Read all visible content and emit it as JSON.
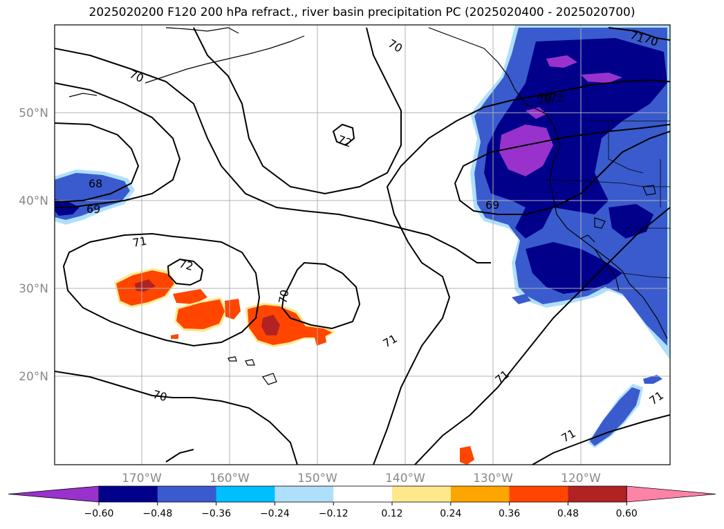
{
  "title": "2025020200 F120 200 hPa refract., river basin precipitation PC (2025020400 - 2025020700)",
  "lat_labels": [
    "50°N",
    "40°N",
    "30°N",
    "20°N"
  ],
  "lon_labels": [
    "170°W",
    "160°W",
    "150°W",
    "140°W",
    "130°W",
    "120°W"
  ],
  "colorbar": {
    "ticks": [
      "−0.60",
      "−0.48",
      "−0.36",
      "−0.24",
      "−0.12",
      "0.12",
      "0.24",
      "0.36",
      "0.48",
      "0.60"
    ],
    "colors": [
      "#9932cc",
      "#00008b",
      "#3a5bcd",
      "#00bfff",
      "#afe0fb",
      "#ffffff",
      "#fde98c",
      "#ffa500",
      "#ff4500",
      "#b22222",
      "#ff82a8"
    ]
  },
  "contour_labels": [
    "70",
    "70",
    "71",
    "72",
    "72",
    "70",
    "70",
    "68",
    "69",
    "71",
    "72",
    "70",
    "70",
    "71",
    "71",
    "71",
    "70",
    "69",
    "71"
  ]
}
